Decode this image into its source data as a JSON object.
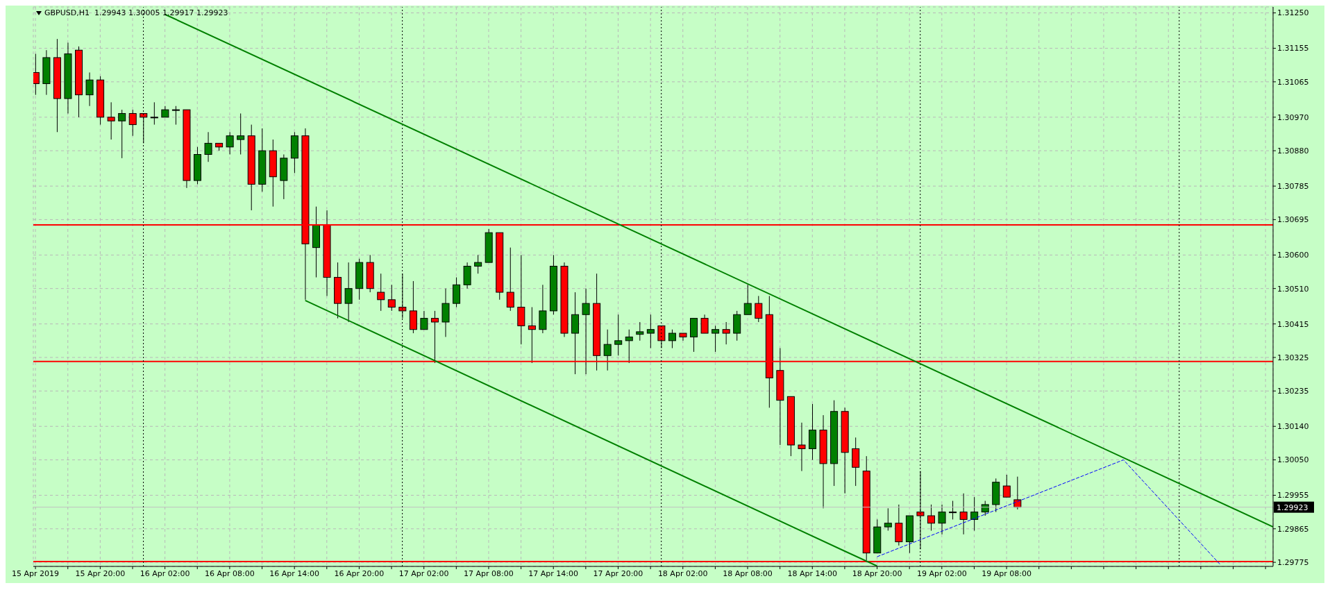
{
  "chart_data": {
    "type": "candlestick",
    "title": "GBPUSD,H1  1.29943 1.30005 1.29917 1.29923",
    "x": [
      "2019-04-15T14:00",
      "2019-04-15T15:00",
      "2019-04-15T16:00",
      "2019-04-15T17:00",
      "2019-04-15T18:00",
      "2019-04-15T19:00",
      "2019-04-15T20:00",
      "2019-04-15T21:00",
      "2019-04-15T22:00",
      "2019-04-15T23:00",
      "2019-04-16T00:00",
      "2019-04-16T01:00",
      "2019-04-16T02:00",
      "2019-04-16T03:00",
      "2019-04-16T04:00",
      "2019-04-16T05:00",
      "2019-04-16T06:00",
      "2019-04-16T07:00",
      "2019-04-16T08:00",
      "2019-04-16T09:00",
      "2019-04-16T10:00",
      "2019-04-16T11:00",
      "2019-04-16T12:00",
      "2019-04-16T13:00",
      "2019-04-16T14:00",
      "2019-04-16T15:00",
      "2019-04-16T16:00",
      "2019-04-16T17:00",
      "2019-04-16T18:00",
      "2019-04-16T19:00",
      "2019-04-16T20:00",
      "2019-04-16T21:00",
      "2019-04-16T22:00",
      "2019-04-16T23:00",
      "2019-04-17T00:00",
      "2019-04-17T01:00",
      "2019-04-17T02:00",
      "2019-04-17T03:00",
      "2019-04-17T04:00",
      "2019-04-17T05:00",
      "2019-04-17T06:00",
      "2019-04-17T07:00",
      "2019-04-17T08:00",
      "2019-04-17T09:00",
      "2019-04-17T10:00",
      "2019-04-17T11:00",
      "2019-04-17T12:00",
      "2019-04-17T13:00",
      "2019-04-17T14:00",
      "2019-04-17T15:00",
      "2019-04-17T16:00",
      "2019-04-17T17:00",
      "2019-04-17T18:00",
      "2019-04-17T19:00",
      "2019-04-17T20:00",
      "2019-04-17T21:00",
      "2019-04-17T22:00",
      "2019-04-17T23:00",
      "2019-04-18T00:00",
      "2019-04-18T01:00",
      "2019-04-18T02:00",
      "2019-04-18T03:00",
      "2019-04-18T04:00",
      "2019-04-18T05:00",
      "2019-04-18T06:00",
      "2019-04-18T07:00",
      "2019-04-18T08:00",
      "2019-04-18T09:00",
      "2019-04-18T10:00",
      "2019-04-18T11:00",
      "2019-04-18T12:00",
      "2019-04-18T13:00",
      "2019-04-18T14:00",
      "2019-04-18T15:00",
      "2019-04-18T16:00",
      "2019-04-18T17:00",
      "2019-04-18T18:00",
      "2019-04-18T19:00",
      "2019-04-18T20:00",
      "2019-04-18T21:00",
      "2019-04-18T22:00",
      "2019-04-18T23:00",
      "2019-04-19T00:00",
      "2019-04-19T01:00",
      "2019-04-19T02:00",
      "2019-04-19T03:00",
      "2019-04-19T04:00",
      "2019-04-19T05:00",
      "2019-04-19T06:00",
      "2019-04-19T07:00",
      "2019-04-19T08:00",
      "2019-04-19T09:00"
    ],
    "ohlc": [
      [
        1.3109,
        1.3114,
        1.3103,
        1.3106
      ],
      [
        1.3106,
        1.3115,
        1.3103,
        1.3113
      ],
      [
        1.3113,
        1.3118,
        1.3093,
        1.3102
      ],
      [
        1.3102,
        1.3117,
        1.3098,
        1.3114
      ],
      [
        1.3115,
        1.3116,
        1.3097,
        1.3103
      ],
      [
        1.3103,
        1.3109,
        1.31,
        1.3107
      ],
      [
        1.3107,
        1.3108,
        1.3095,
        1.3097
      ],
      [
        1.3097,
        1.3101,
        1.3091,
        1.3096
      ],
      [
        1.3096,
        1.3099,
        1.3086,
        1.3098
      ],
      [
        1.3098,
        1.3099,
        1.3092,
        1.3095
      ],
      [
        1.3098,
        1.3098,
        1.309,
        1.3097
      ],
      [
        1.3097,
        1.3101,
        1.3095,
        1.3097
      ],
      [
        1.3097,
        1.31,
        1.3097,
        1.3099
      ],
      [
        1.3099,
        1.31,
        1.3095,
        1.3099
      ],
      [
        1.3099,
        1.3099,
        1.3078,
        1.308
      ],
      [
        1.308,
        1.3089,
        1.3079,
        1.3087
      ],
      [
        1.3087,
        1.3093,
        1.3085,
        1.309
      ],
      [
        1.309,
        1.309,
        1.3088,
        1.3089
      ],
      [
        1.3089,
        1.3093,
        1.3087,
        1.3092
      ],
      [
        1.3091,
        1.3098,
        1.3087,
        1.3092
      ],
      [
        1.3092,
        1.3095,
        1.3072,
        1.3079
      ],
      [
        1.3079,
        1.3094,
        1.3077,
        1.3088
      ],
      [
        1.3088,
        1.3091,
        1.3073,
        1.3081
      ],
      [
        1.308,
        1.3087,
        1.3075,
        1.3086
      ],
      [
        1.3086,
        1.3093,
        1.3082,
        1.3092
      ],
      [
        1.3092,
        1.3094,
        1.3048,
        1.3063
      ],
      [
        1.3062,
        1.3073,
        1.3054,
        1.3068
      ],
      [
        1.3068,
        1.3072,
        1.3049,
        1.3054
      ],
      [
        1.3054,
        1.3058,
        1.3043,
        1.3047
      ],
      [
        1.3047,
        1.3058,
        1.3042,
        1.3051
      ],
      [
        1.3051,
        1.3059,
        1.3048,
        1.3058
      ],
      [
        1.3058,
        1.306,
        1.305,
        1.3051
      ],
      [
        1.305,
        1.3055,
        1.3045,
        1.3048
      ],
      [
        1.3048,
        1.3052,
        1.3045,
        1.3046
      ],
      [
        1.3046,
        1.3055,
        1.3043,
        1.3045
      ],
      [
        1.3045,
        1.3053,
        1.3039,
        1.304
      ],
      [
        1.304,
        1.3045,
        1.304,
        1.3043
      ],
      [
        1.3043,
        1.3045,
        1.3031,
        1.3042
      ],
      [
        1.3042,
        1.3051,
        1.3038,
        1.3047
      ],
      [
        1.3047,
        1.3054,
        1.3046,
        1.3052
      ],
      [
        1.3052,
        1.3058,
        1.3051,
        1.3057
      ],
      [
        1.3057,
        1.306,
        1.3055,
        1.3058
      ],
      [
        1.3058,
        1.3067,
        1.3058,
        1.3066
      ],
      [
        1.3066,
        1.3066,
        1.3048,
        1.305
      ],
      [
        1.305,
        1.3062,
        1.3045,
        1.3046
      ],
      [
        1.3046,
        1.306,
        1.3036,
        1.3041
      ],
      [
        1.3041,
        1.3046,
        1.3031,
        1.304
      ],
      [
        1.304,
        1.3052,
        1.3039,
        1.3045
      ],
      [
        1.3045,
        1.306,
        1.3044,
        1.3057
      ],
      [
        1.3057,
        1.3058,
        1.3038,
        1.3039
      ],
      [
        1.3039,
        1.305,
        1.3028,
        1.3044
      ],
      [
        1.3044,
        1.3051,
        1.3028,
        1.3047
      ],
      [
        1.3047,
        1.3055,
        1.3029,
        1.3033
      ],
      [
        1.3033,
        1.304,
        1.3029,
        1.3036
      ],
      [
        1.3036,
        1.3044,
        1.3033,
        1.3037
      ],
      [
        1.3037,
        1.304,
        1.3031,
        1.3038
      ],
      [
        1.30387,
        1.3042,
        1.3037,
        1.30394
      ],
      [
        1.3039,
        1.3044,
        1.3035,
        1.304
      ],
      [
        1.3041,
        1.3041,
        1.3035,
        1.3037
      ],
      [
        1.3037,
        1.304,
        1.3035,
        1.3039
      ],
      [
        1.3039,
        1.3039,
        1.3037,
        1.3038
      ],
      [
        1.3038,
        1.3043,
        1.3034,
        1.3043
      ],
      [
        1.3043,
        1.3044,
        1.3039,
        1.3039
      ],
      [
        1.3039,
        1.3041,
        1.3034,
        1.304
      ],
      [
        1.304,
        1.3042,
        1.3036,
        1.3039
      ],
      [
        1.3039,
        1.3045,
        1.3037,
        1.3044
      ],
      [
        1.3044,
        1.3052,
        1.3044,
        1.3047
      ],
      [
        1.3047,
        1.3049,
        1.3042,
        1.3043
      ],
      [
        1.3044,
        1.3049,
        1.3019,
        1.3027
      ],
      [
        1.3029,
        1.3035,
        1.3009,
        1.3021
      ],
      [
        1.3022,
        1.3022,
        1.3006,
        1.3009
      ],
      [
        1.3009,
        1.3015,
        1.3002,
        1.3008
      ],
      [
        1.3008,
        1.302,
        1.3005,
        1.3013
      ],
      [
        1.3013,
        1.3017,
        1.2992,
        1.3004
      ],
      [
        1.3004,
        1.3021,
        1.2998,
        1.3018
      ],
      [
        1.3018,
        1.3019,
        1.2996,
        1.3007
      ],
      [
        1.3008,
        1.3011,
        1.2998,
        1.3003
      ],
      [
        1.3002,
        1.3006,
        1.2978,
        1.298
      ],
      [
        1.298,
        1.2989,
        1.298,
        1.2987
      ],
      [
        1.2987,
        1.2992,
        1.2986,
        1.2988
      ],
      [
        1.2988,
        1.2993,
        1.2982,
        1.2983
      ],
      [
        1.2983,
        1.299,
        1.298,
        1.299
      ],
      [
        1.2991,
        1.3002,
        1.2981,
        1.299
      ],
      [
        1.299,
        1.2993,
        1.2986,
        1.2988
      ],
      [
        1.2988,
        1.2993,
        1.2985,
        1.2991
      ],
      [
        1.2991,
        1.2994,
        1.2989,
        1.2991
      ],
      [
        1.2991,
        1.2996,
        1.2985,
        1.2989
      ],
      [
        1.2989,
        1.2995,
        1.2986,
        1.2991
      ],
      [
        1.2991,
        1.2994,
        1.299,
        1.2993
      ],
      [
        1.2993,
        1.3,
        1.2991,
        1.2999
      ],
      [
        1.2998,
        1.3001,
        1.2995,
        1.2995
      ],
      [
        1.29943,
        1.30005,
        1.29917,
        1.29923
      ]
    ],
    "colors": [
      "#ff0000",
      "#008000",
      "#ff0000",
      "#008000",
      "#ff0000",
      "#008000",
      "#ff0000",
      "#ff0000",
      "#008000",
      "#ff0000",
      "#ff0000",
      "#000000",
      "#008000",
      "#000000",
      "#ff0000",
      "#008000",
      "#008000",
      "#ff0000",
      "#008000",
      "#008000",
      "#ff0000",
      "#008000",
      "#ff0000",
      "#008000",
      "#008000",
      "#ff0000",
      "#008000",
      "#ff0000",
      "#ff0000",
      "#008000",
      "#008000",
      "#ff0000",
      "#ff0000",
      "#ff0000",
      "#ff0000",
      "#ff0000",
      "#008000",
      "#ff0000",
      "#008000",
      "#008000",
      "#008000",
      "#008000",
      "#008000",
      "#ff0000",
      "#ff0000",
      "#ff0000",
      "#ff0000",
      "#008000",
      "#008000",
      "#ff0000",
      "#008000",
      "#008000",
      "#ff0000",
      "#008000",
      "#008000",
      "#008000",
      "#008000",
      "#008000",
      "#ff0000",
      "#008000",
      "#ff0000",
      "#008000",
      "#ff0000",
      "#008000",
      "#ff0000",
      "#008000",
      "#008000",
      "#ff0000",
      "#ff0000",
      "#ff0000",
      "#ff0000",
      "#ff0000",
      "#008000",
      "#ff0000",
      "#008000",
      "#ff0000",
      "#ff0000",
      "#ff0000",
      "#008000",
      "#008000",
      "#ff0000",
      "#008000",
      "#ff0000",
      "#ff0000",
      "#008000",
      "#000000",
      "#ff0000",
      "#008000",
      "#008000",
      "#008000",
      "#ff0000",
      "#ff0000"
    ],
    "series": [
      {
        "type": "line",
        "x": [
          "2019-04-16T02:00",
          "2019-04-20T08:42"
        ],
        "values": [
          1.31246,
          1.2987
        ],
        "color": "#008000",
        "line_style": "solid"
      },
      {
        "type": "line",
        "x": [
          "2019-04-16T15:00",
          "2019-04-18T17:00",
          "2019-04-18T20:00"
        ],
        "values": [
          1.30478,
          1.29805,
          1.29765
        ],
        "color": "#008000",
        "line_style": "solid"
      },
      {
        "type": "line",
        "x": [
          "2019-04-18T20:00",
          "2019-04-19T18:50",
          "2019-04-20T03:46"
        ],
        "values": [
          1.2979,
          1.3005,
          1.2977
        ],
        "color": "#0000ff",
        "line_style": "dashed"
      }
    ],
    "xlim": [
      "2019-04-15T13:48",
      "2019-04-20T08:42"
    ],
    "xticks": [
      {
        "value": "2019-04-15T14:00",
        "label": "15 Apr 2019"
      },
      {
        "value": "2019-04-15T17:00",
        "label": null
      },
      {
        "value": "2019-04-15T20:00",
        "label": "15 Apr 20:00"
      },
      {
        "value": "2019-04-15T23:00",
        "label": null
      },
      {
        "value": "2019-04-16T02:00",
        "label": "16 Apr 02:00"
      },
      {
        "value": "2019-04-16T05:00",
        "label": null
      },
      {
        "value": "2019-04-16T08:00",
        "label": "16 Apr 08:00"
      },
      {
        "value": "2019-04-16T11:00",
        "label": null
      },
      {
        "value": "2019-04-16T14:00",
        "label": "16 Apr 14:00"
      },
      {
        "value": "2019-04-16T17:00",
        "label": null
      },
      {
        "value": "2019-04-16T20:00",
        "label": "16 Apr 20:00"
      },
      {
        "value": "2019-04-16T23:00",
        "label": null
      },
      {
        "value": "2019-04-17T02:00",
        "label": "17 Apr 02:00"
      },
      {
        "value": "2019-04-17T05:00",
        "label": null
      },
      {
        "value": "2019-04-17T08:00",
        "label": "17 Apr 08:00"
      },
      {
        "value": "2019-04-17T11:00",
        "label": null
      },
      {
        "value": "2019-04-17T14:00",
        "label": "17 Apr 14:00"
      },
      {
        "value": "2019-04-17T17:00",
        "label": null
      },
      {
        "value": "2019-04-17T20:00",
        "label": "17 Apr 20:00"
      },
      {
        "value": "2019-04-17T23:00",
        "label": null
      },
      {
        "value": "2019-04-18T02:00",
        "label": "18 Apr 02:00"
      },
      {
        "value": "2019-04-18T05:00",
        "label": null
      },
      {
        "value": "2019-04-18T08:00",
        "label": "18 Apr 08:00"
      },
      {
        "value": "2019-04-18T11:00",
        "label": null
      },
      {
        "value": "2019-04-18T14:00",
        "label": "18 Apr 14:00"
      },
      {
        "value": "2019-04-18T17:00",
        "label": null
      },
      {
        "value": "2019-04-18T20:00",
        "label": "18 Apr 20:00"
      },
      {
        "value": "2019-04-18T23:00",
        "label": null
      },
      {
        "value": "2019-04-19T02:00",
        "label": "19 Apr 02:00"
      },
      {
        "value": "2019-04-19T05:00",
        "label": null
      },
      {
        "value": "2019-04-19T08:00",
        "label": "19 Apr 08:00"
      },
      {
        "value": "2019-04-19T11:00",
        "label": null
      },
      {
        "value": "2019-04-19T14:00",
        "label": null
      },
      {
        "value": "2019-04-19T17:00",
        "label": null
      },
      {
        "value": "2019-04-19T20:00",
        "label": null
      },
      {
        "value": "2019-04-19T23:00",
        "label": null
      },
      {
        "value": "2019-04-20T02:00",
        "label": null
      },
      {
        "value": "2019-04-20T05:00",
        "label": null
      },
      {
        "value": "2019-04-20T08:00",
        "label": null
      }
    ],
    "ylim": [
      1.29764,
      1.31266
    ],
    "yticks": [
      {
        "value": 1.3125,
        "label": "1.31250"
      },
      {
        "value": 1.31155,
        "label": "1.31155"
      },
      {
        "value": 1.31065,
        "label": "1.31065"
      },
      {
        "value": 1.3097,
        "label": "1.30970"
      },
      {
        "value": 1.3088,
        "label": "1.30880"
      },
      {
        "value": 1.30785,
        "label": "1.30785"
      },
      {
        "value": 1.30695,
        "label": "1.30695"
      },
      {
        "value": 1.306,
        "label": "1.30600"
      },
      {
        "value": 1.3051,
        "label": "1.30510"
      },
      {
        "value": 1.30415,
        "label": "1.30415"
      },
      {
        "value": 1.30325,
        "label": "1.30325"
      },
      {
        "value": 1.30235,
        "label": "1.30235"
      },
      {
        "value": 1.3014,
        "label": "1.30140"
      },
      {
        "value": 1.3005,
        "label": "1.30050"
      },
      {
        "value": 1.29955,
        "label": "1.29955"
      },
      {
        "value": 1.29865,
        "label": "1.29865"
      },
      {
        "value": 1.29775,
        "label": "1.29775"
      }
    ],
    "grid": true,
    "ref_lines": [
      {
        "axis": "y",
        "value": 1.30681,
        "color": "#ff0000"
      },
      {
        "axis": "y",
        "value": 1.30314,
        "color": "#ff0000"
      },
      {
        "axis": "y",
        "value": 1.29777,
        "color": "#ff0000"
      },
      {
        "axis": "y",
        "value": 1.29923,
        "label": "1.29923",
        "color": "#c0c0c0"
      },
      {
        "axis": "x",
        "value": "2019-04-16T00:00",
        "color": "#000000",
        "line_style": "dotted"
      },
      {
        "axis": "x",
        "value": "2019-04-17T00:00",
        "color": "#000000",
        "line_style": "dotted"
      },
      {
        "axis": "x",
        "value": "2019-04-18T00:00",
        "color": "#000000",
        "line_style": "dotted"
      },
      {
        "axis": "x",
        "value": "2019-04-19T00:00",
        "color": "#000000",
        "line_style": "dotted"
      },
      {
        "axis": "x",
        "value": "2019-04-20T00:00",
        "color": "#000000",
        "line_style": "dotted"
      }
    ]
  }
}
